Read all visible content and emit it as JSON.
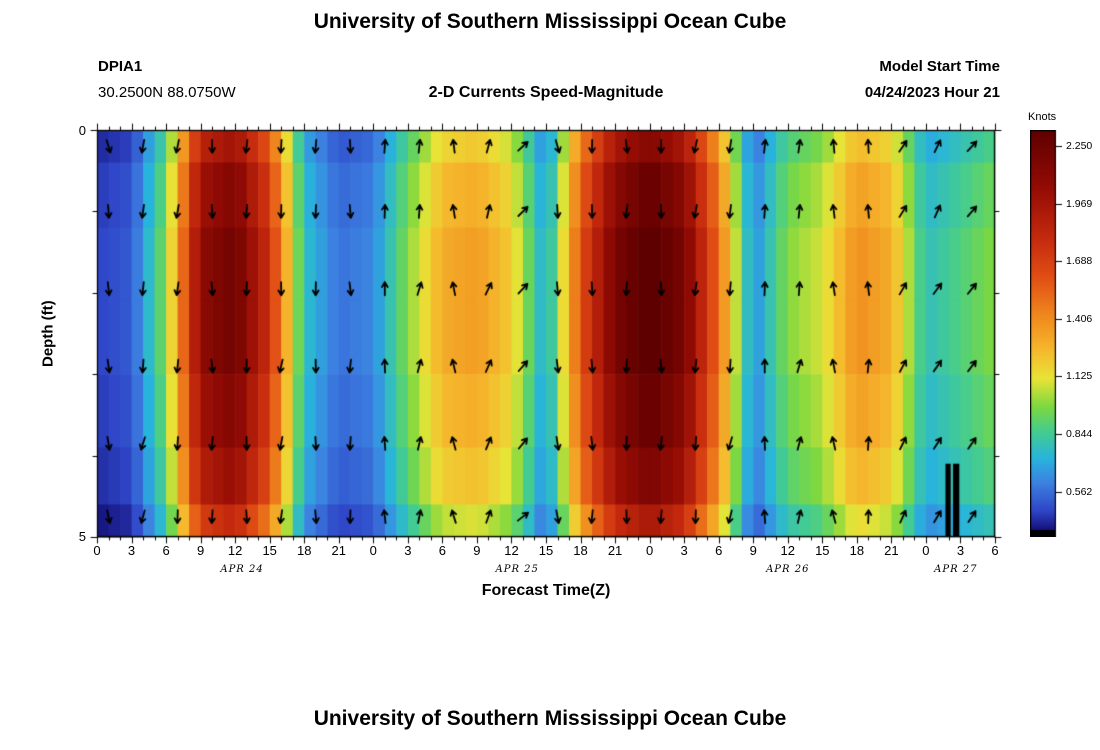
{
  "header": {
    "title": "University of Southern Mississippi Ocean Cube",
    "station_id": "DPIA1",
    "coordinates": "30.2500N  88.0750W",
    "subtitle": "2-D Currents Speed-Magnitude",
    "model_start_label": "Model Start Time",
    "model_start_value": "04/24/2023 Hour 21"
  },
  "footer": {
    "next_chart_title": "University of Southern Mississippi Ocean Cube"
  },
  "chart_data": {
    "type": "heatmap",
    "title": "University of Southern Mississippi Ocean Cube",
    "subtitle": "2-D Currents Speed-Magnitude",
    "xlabel": "Forecast Time(Z)",
    "ylabel": "Depth (ft)",
    "x_range_hours": [
      0,
      78
    ],
    "x_major_tick_step_hours": 3,
    "x_minor_tick_step_hours": 1,
    "x_tick_label_cycle": [
      "0",
      "3",
      "6",
      "9",
      "12",
      "15",
      "18",
      "21"
    ],
    "date_labels": [
      {
        "text": "APR 24",
        "hour": 12.6
      },
      {
        "text": "APR 25",
        "hour": 36.5
      },
      {
        "text": "APR 26",
        "hour": 60.0
      },
      {
        "text": "APR 27",
        "hour": 74.6
      }
    ],
    "y_range_ft": [
      0,
      5
    ],
    "y_tick_labels": [
      "0",
      "5"
    ],
    "colorbar": {
      "label": "Knots",
      "tick_labels": [
        "2.250",
        "1.969",
        "1.688",
        "1.406",
        "1.125",
        "0.844",
        "0.562"
      ],
      "tick_values": [
        2.25,
        1.969,
        1.688,
        1.406,
        1.125,
        0.844,
        0.562
      ],
      "vmin": 0.375,
      "vmax": 2.328
    },
    "colormap": [
      {
        "t": 0.0,
        "c": "#141078"
      },
      {
        "t": 0.05,
        "c": "#2f46c8"
      },
      {
        "t": 0.12,
        "c": "#3c82e1"
      },
      {
        "t": 0.18,
        "c": "#28b4dc"
      },
      {
        "t": 0.25,
        "c": "#46cd8c"
      },
      {
        "t": 0.31,
        "c": "#7ed83f"
      },
      {
        "t": 0.38,
        "c": "#e8e337"
      },
      {
        "t": 0.45,
        "c": "#f5b92d"
      },
      {
        "t": 0.53,
        "c": "#f08c1e"
      },
      {
        "t": 0.63,
        "c": "#e25015"
      },
      {
        "t": 0.73,
        "c": "#c52a0e"
      },
      {
        "t": 0.86,
        "c": "#930b04"
      },
      {
        "t": 1.0,
        "c": "#5f0000"
      }
    ],
    "under_range_color": "#000000",
    "series_hours": [
      0,
      3,
      6,
      9,
      12,
      15,
      18,
      21,
      24,
      27,
      30,
      33,
      36,
      39,
      42,
      45,
      48,
      51,
      54,
      57,
      60,
      63,
      66,
      69,
      72,
      75,
      78
    ],
    "speed_knots_mid_depth": [
      0.45,
      0.5,
      0.95,
      2.0,
      2.15,
      1.7,
      0.75,
      0.55,
      0.6,
      0.95,
      1.25,
      1.3,
      1.15,
      0.65,
      1.55,
      2.1,
      2.3,
      2.1,
      1.45,
      0.6,
      0.95,
      1.05,
      1.35,
      1.25,
      0.75,
      0.85,
      0.95
    ],
    "depth_band_edges_ft": [
      0,
      0.4,
      1.2,
      2.1,
      3.0,
      3.9,
      4.6,
      5.0
    ],
    "depth_band_factors": [
      0.93,
      1.0,
      1.04,
      1.04,
      1.0,
      0.95,
      0.85
    ],
    "arrows": {
      "row_depths_ft": [
        0.2,
        1.0,
        1.95,
        2.9,
        3.85,
        4.75
      ],
      "column_hours": [
        1,
        4,
        7,
        10,
        13,
        16,
        19,
        22,
        25,
        28,
        31,
        34,
        37,
        40,
        43,
        46,
        49,
        52,
        55,
        58,
        61,
        64,
        67,
        70,
        73,
        76
      ],
      "directions_deg": [
        170,
        190,
        185,
        180,
        180,
        185,
        180,
        180,
        0,
        10,
        350,
        20,
        45,
        170,
        180,
        180,
        180,
        185,
        190,
        0,
        10,
        350,
        0,
        30,
        30,
        40
      ]
    },
    "missing_data_bars": [
      {
        "hour_start": 73.7,
        "hour_end": 74.15,
        "depth_start": 4.1,
        "depth_end": 5.0
      },
      {
        "hour_start": 74.35,
        "hour_end": 74.9,
        "depth_start": 4.1,
        "depth_end": 5.0
      }
    ]
  }
}
